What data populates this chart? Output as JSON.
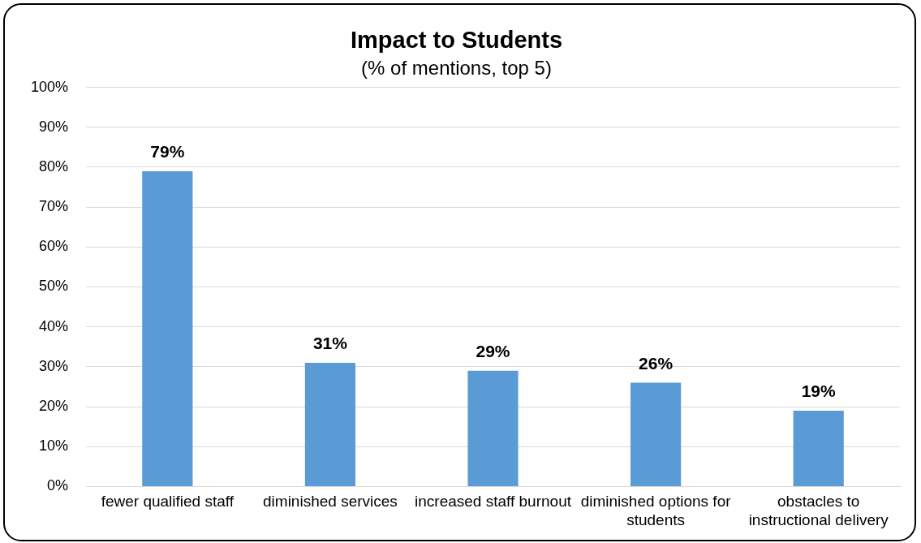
{
  "chart_data": {
    "type": "bar",
    "title": "Impact to Students",
    "subtitle": "(% of mentions, top 5)",
    "categories": [
      "fewer qualified staff",
      "diminished services",
      "increased staff burnout",
      "diminished options for students",
      "obstacles to instructional delivery"
    ],
    "values": [
      79,
      31,
      29,
      26,
      19
    ],
    "value_labels": [
      "79%",
      "31%",
      "29%",
      "26%",
      "19%"
    ],
    "color": "#5b9bd5",
    "ylim": [
      0,
      100
    ],
    "yticks": [
      {
        "value": 0,
        "label": "0%"
      },
      {
        "value": 10,
        "label": "10%"
      },
      {
        "value": 20,
        "label": "20%"
      },
      {
        "value": 30,
        "label": "30%"
      },
      {
        "value": 40,
        "label": "40%"
      },
      {
        "value": 50,
        "label": "50%"
      },
      {
        "value": 60,
        "label": "60%"
      },
      {
        "value": 70,
        "label": "70%"
      },
      {
        "value": 80,
        "label": "80%"
      },
      {
        "value": 90,
        "label": "90%"
      },
      {
        "value": 100,
        "label": "100%"
      }
    ],
    "grid": "y",
    "legend": false
  }
}
